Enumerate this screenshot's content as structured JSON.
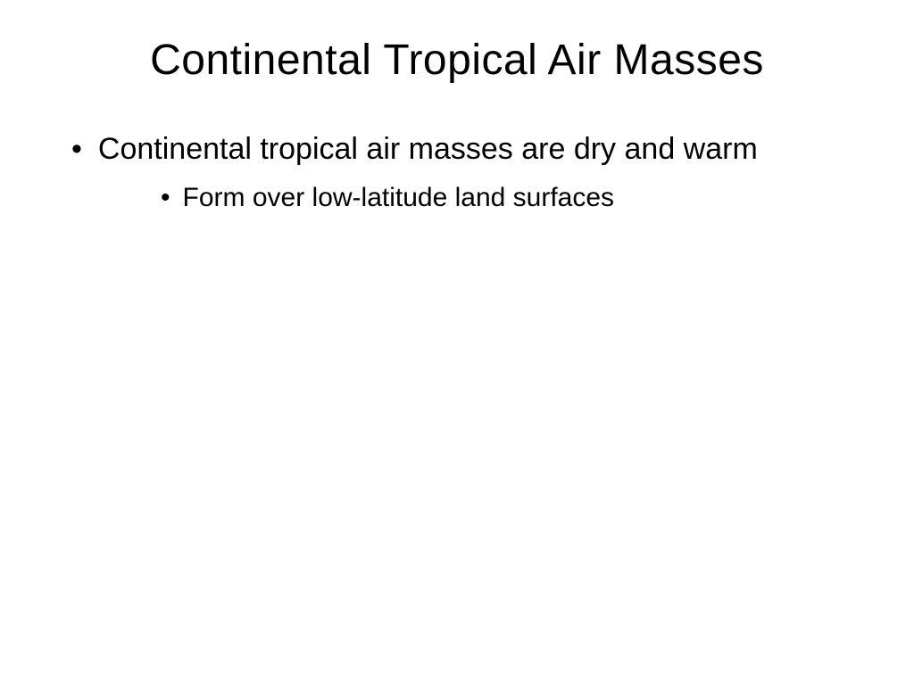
{
  "slide": {
    "title": "Continental Tropical Air Masses",
    "background_color": "#ffffff",
    "text_color": "#000000",
    "title_fontsize": 48,
    "body_fontsize_level1": 34,
    "body_fontsize_level2": 30,
    "bullets": {
      "level1": [
        {
          "text": "Continental tropical air masses are dry and warm",
          "children": [
            {
              "text": "Form over low-latitude land surfaces"
            }
          ]
        }
      ]
    }
  }
}
